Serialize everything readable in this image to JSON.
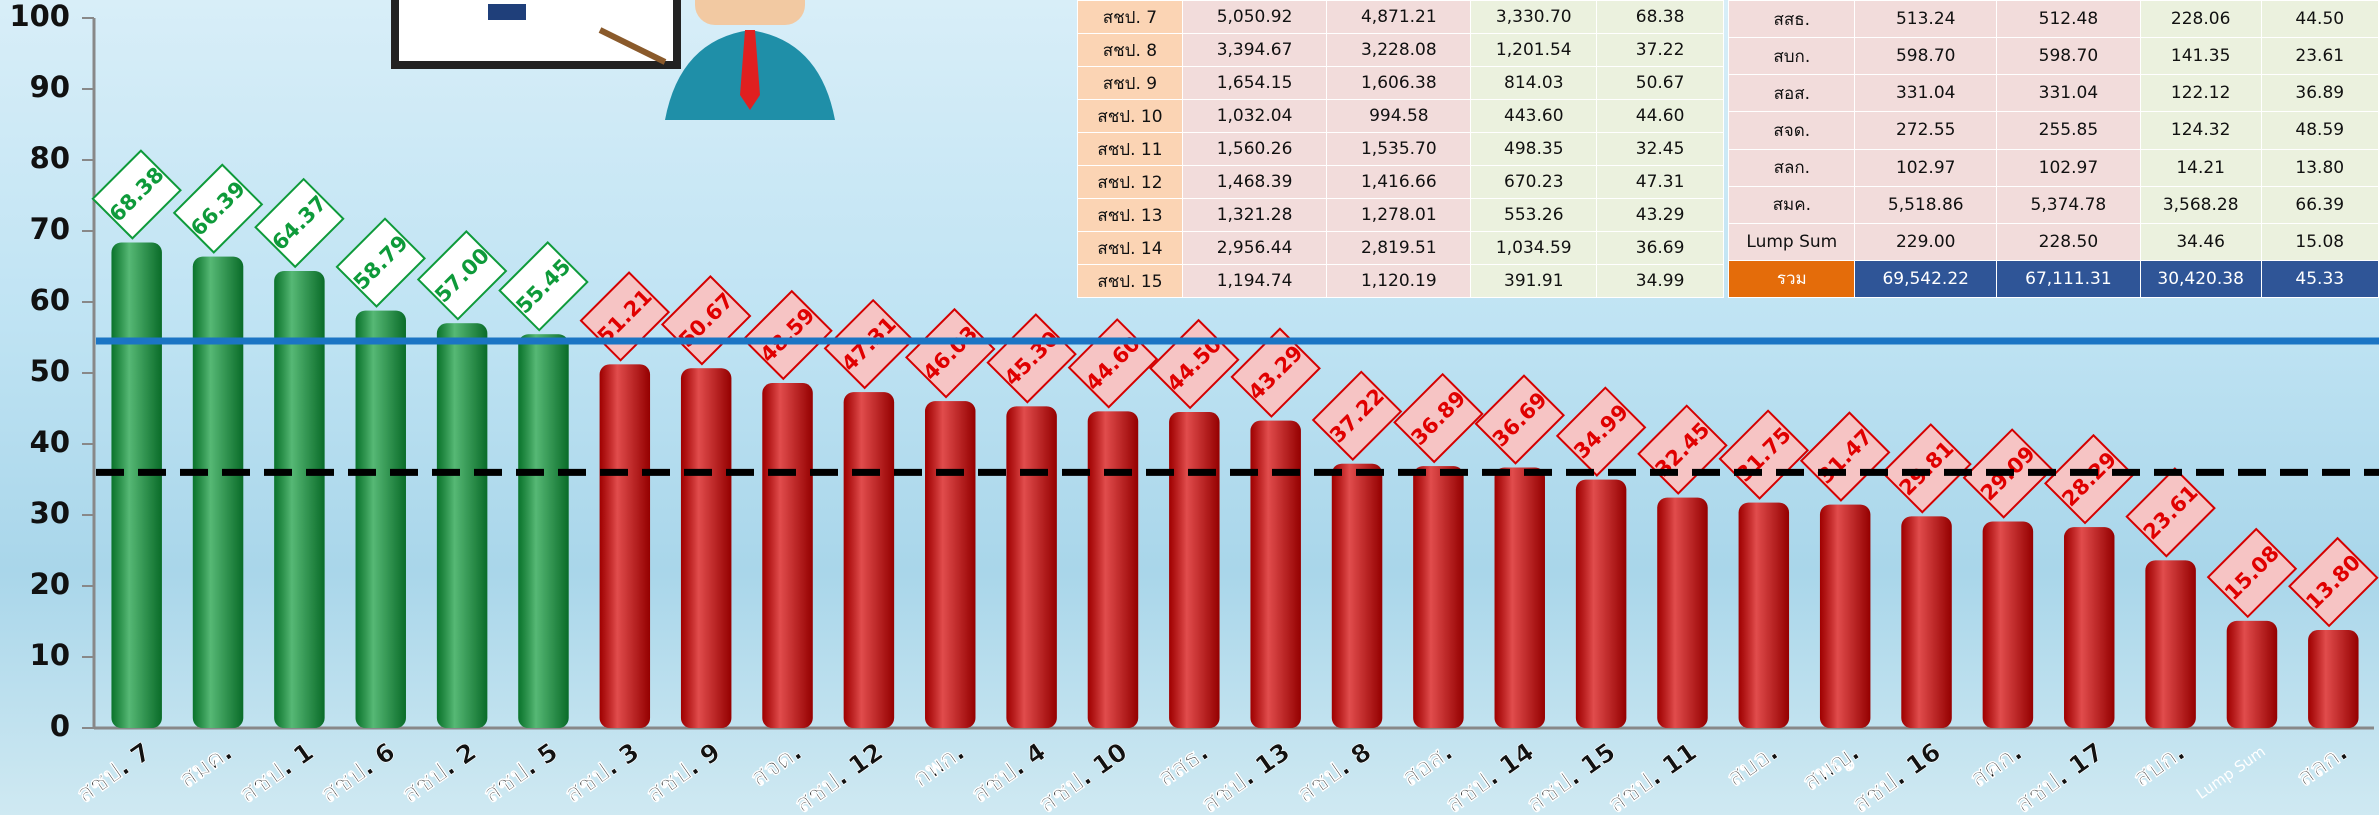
{
  "chart_data": {
    "type": "bar",
    "categories": [
      "สชป. 7",
      "สมค.",
      "สชป. 1",
      "สชป. 6",
      "สชป. 2",
      "สชป. 5",
      "สชป. 3",
      "สชป. 9",
      "สจด.",
      "สชป. 12",
      "กพก.",
      "สชป. 4",
      "สชป. 10",
      "สสธ.",
      "สชป. 13",
      "สชป. 8",
      "สอส.",
      "สชป. 14",
      "สชป. 15",
      "สชป. 11",
      "สบอ.",
      "สพญ.",
      "สชป. 16",
      "สคก.",
      "สชป. 17",
      "สบก.",
      "Lump Sum",
      "สลก."
    ],
    "values": [
      68.38,
      66.39,
      64.37,
      58.79,
      57.0,
      55.45,
      51.21,
      50.67,
      48.59,
      47.31,
      46.03,
      45.3,
      44.6,
      44.5,
      43.29,
      37.22,
      36.89,
      36.69,
      34.99,
      32.45,
      31.75,
      31.47,
      29.81,
      29.09,
      28.29,
      23.61,
      15.08,
      13.8
    ],
    "value_labels": [
      "68.38",
      "66.39",
      "64.37",
      "58.79",
      "57.00",
      "55.45",
      "51.21",
      "50.67",
      "48.59",
      "47.31",
      "46.03",
      "45.30",
      "44.60",
      "44.50",
      "43.29",
      "37.22",
      "36.89",
      "36.69",
      "34.99",
      "32.45",
      "31.75",
      "31.47",
      "29.81",
      "29.09",
      "28.29",
      "23.61",
      "15.08",
      "13.80"
    ],
    "colors": [
      "#0e9a3a",
      "#0e9a3a",
      "#0e9a3a",
      "#0e9a3a",
      "#0e9a3a",
      "#0e9a3a",
      "#d40000",
      "#d40000",
      "#d40000",
      "#d40000",
      "#d40000",
      "#d40000",
      "#d40000",
      "#d40000",
      "#d40000",
      "#d40000",
      "#d40000",
      "#d40000",
      "#d40000",
      "#d40000",
      "#d40000",
      "#d40000",
      "#d40000",
      "#d40000",
      "#d40000",
      "#d40000",
      "#d40000",
      "#d40000"
    ],
    "ylim": [
      0,
      100
    ],
    "yticks": [
      0,
      10,
      20,
      30,
      40,
      50,
      60,
      70,
      80,
      90,
      100
    ],
    "reference_lines": [
      {
        "value": 54.5,
        "color": "#1b75c4",
        "style": "solid"
      },
      {
        "value": 36,
        "color": "#000000",
        "style": "dashed"
      }
    ]
  },
  "table": {
    "left": [
      [
        "สชป. 7",
        "5,050.92",
        "4,871.21",
        "3,330.70",
        "68.38"
      ],
      [
        "สชป. 8",
        "3,394.67",
        "3,228.08",
        "1,201.54",
        "37.22"
      ],
      [
        "สชป. 9",
        "1,654.15",
        "1,606.38",
        "814.03",
        "50.67"
      ],
      [
        "สชป. 10",
        "1,032.04",
        "994.58",
        "443.60",
        "44.60"
      ],
      [
        "สชป. 11",
        "1,560.26",
        "1,535.70",
        "498.35",
        "32.45"
      ],
      [
        "สชป. 12",
        "1,468.39",
        "1,416.66",
        "670.23",
        "47.31"
      ],
      [
        "สชป. 13",
        "1,321.28",
        "1,278.01",
        "553.26",
        "43.29"
      ],
      [
        "สชป. 14",
        "2,956.44",
        "2,819.51",
        "1,034.59",
        "36.69"
      ],
      [
        "สชป. 15",
        "1,194.74",
        "1,120.19",
        "391.91",
        "34.99"
      ]
    ],
    "right": [
      [
        "สสธ.",
        "513.24",
        "512.48",
        "228.06",
        "44.50"
      ],
      [
        "สบก.",
        "598.70",
        "598.70",
        "141.35",
        "23.61"
      ],
      [
        "สอส.",
        "331.04",
        "331.04",
        "122.12",
        "36.89"
      ],
      [
        "สจด.",
        "272.55",
        "255.85",
        "124.32",
        "48.59"
      ],
      [
        "สลก.",
        "102.97",
        "102.97",
        "14.21",
        "13.80"
      ],
      [
        "สมค.",
        "5,518.86",
        "5,374.78",
        "3,568.28",
        "66.39"
      ],
      [
        "Lump Sum",
        "229.00",
        "228.50",
        "34.46",
        "15.08"
      ],
      [
        "รวม",
        "69,542.22",
        "67,111.31",
        "30,420.38",
        "45.33"
      ]
    ]
  }
}
